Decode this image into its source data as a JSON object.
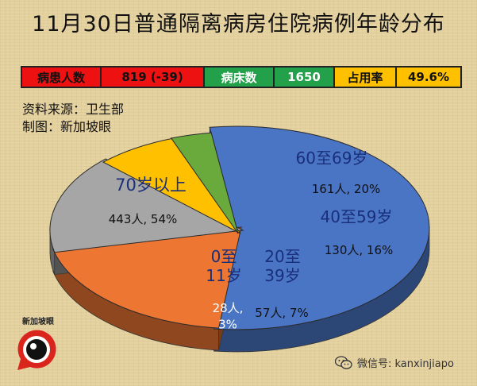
{
  "title": "11月30日普通隔离病房住院病例年龄分布",
  "stats": {
    "patients_label": "病患人数",
    "patients_value": "819 (-39)",
    "beds_label": "病床数",
    "beds_value": "1650",
    "occupancy_label": "占用率",
    "occupancy_value": "49.6%"
  },
  "source": "资料来源：卫生部",
  "maker": "制图：新加坡眼",
  "logo_text": "新加坡眼",
  "watermark": "微信号: kanxinjiapo",
  "colors": {
    "red": "#ee1111",
    "green": "#22a04a",
    "yellow": "#ffc000",
    "blue": "#4a74c4",
    "orange": "#ec7632",
    "gray": "#a6a6a6",
    "darkgreen": "#6aaa3d",
    "gold": "#ffc000"
  },
  "chart_data": {
    "type": "pie",
    "title": "",
    "slices": [
      {
        "key": "s70",
        "label_lines": [
          "70岁以上"
        ],
        "detail_lines": [
          "443人, 54%"
        ],
        "count": 443,
        "percent": 54,
        "color": "#4a74c4"
      },
      {
        "key": "s60",
        "label_lines": [
          "60至69岁"
        ],
        "detail_lines": [
          "161人, 20%"
        ],
        "count": 161,
        "percent": 20,
        "color": "#ec7632"
      },
      {
        "key": "s40",
        "label_lines": [
          "40至59岁"
        ],
        "detail_lines": [
          "130人, 16%"
        ],
        "count": 130,
        "percent": 16,
        "color": "#a6a6a6"
      },
      {
        "key": "s20",
        "label_lines": [
          "20至",
          "39岁"
        ],
        "detail_lines": [
          "57人, 7%"
        ],
        "count": 57,
        "percent": 7,
        "color": "#ffc000"
      },
      {
        "key": "s0",
        "label_lines": [
          "0至",
          "11岁"
        ],
        "detail_lines": [
          "28人,",
          "3%"
        ],
        "count": 28,
        "percent": 3,
        "color": "#6aaa3d"
      }
    ]
  }
}
